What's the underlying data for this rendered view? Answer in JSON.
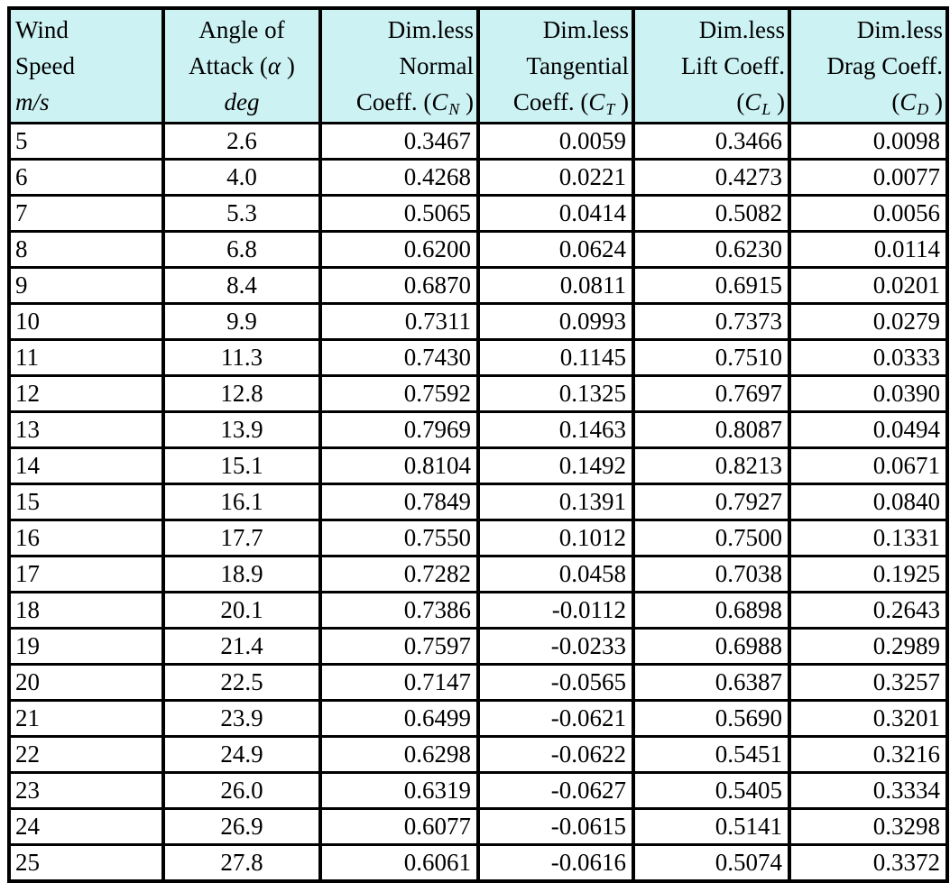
{
  "colors": {
    "header_bg": "#CCF2F4",
    "grid_border": "#000000",
    "text": "#000000",
    "page_bg": "#FFFFFF"
  },
  "table": {
    "header": {
      "c0": {
        "line1": "Wind",
        "line2": "Speed",
        "line3_unit": "m/s"
      },
      "c1": {
        "line1": "Angle of",
        "line2_text": "Attack (",
        "line2_symbol": "α",
        "line2_close": " )",
        "line3_unit": "deg"
      },
      "c2": {
        "line1": "Dim.less",
        "line2": "Normal",
        "line3_text": "Coeff. (",
        "line3_var": "C",
        "line3_sub": "N",
        "line3_close": " )"
      },
      "c3": {
        "line1": "Dim.less",
        "line2": "Tangential",
        "line3_text": "Coeff. (",
        "line3_var": "C",
        "line3_sub": "T",
        "line3_close": " )"
      },
      "c4": {
        "line1": "Dim.less",
        "line2": "Lift Coeff.",
        "line3_text": "(",
        "line3_var": "C",
        "line3_sub": "L",
        "line3_close": " )"
      },
      "c5": {
        "line1": "Dim.less",
        "line2": "Drag Coeff.",
        "line3_text": "(",
        "line3_var": "C",
        "line3_sub": "D",
        "line3_close": " )"
      }
    },
    "column_ids": [
      "wind-speed",
      "angle-of-attack",
      "normal-coeff",
      "tangential-coeff",
      "lift-coeff",
      "drag-coeff"
    ],
    "rows": [
      [
        "5",
        "2.6",
        "0.3467",
        "0.0059",
        "0.3466",
        "0.0098"
      ],
      [
        "6",
        "4.0",
        "0.4268",
        "0.0221",
        "0.4273",
        "0.0077"
      ],
      [
        "7",
        "5.3",
        "0.5065",
        "0.0414",
        "0.5082",
        "0.0056"
      ],
      [
        "8",
        "6.8",
        "0.6200",
        "0.0624",
        "0.6230",
        "0.0114"
      ],
      [
        "9",
        "8.4",
        "0.6870",
        "0.0811",
        "0.6915",
        "0.0201"
      ],
      [
        "10",
        "9.9",
        "0.7311",
        "0.0993",
        "0.7373",
        "0.0279"
      ],
      [
        "11",
        "11.3",
        "0.7430",
        "0.1145",
        "0.7510",
        "0.0333"
      ],
      [
        "12",
        "12.8",
        "0.7592",
        "0.1325",
        "0.7697",
        "0.0390"
      ],
      [
        "13",
        "13.9",
        "0.7969",
        "0.1463",
        "0.8087",
        "0.0494"
      ],
      [
        "14",
        "15.1",
        "0.8104",
        "0.1492",
        "0.8213",
        "0.0671"
      ],
      [
        "15",
        "16.1",
        "0.7849",
        "0.1391",
        "0.7927",
        "0.0840"
      ],
      [
        "16",
        "17.7",
        "0.7550",
        "0.1012",
        "0.7500",
        "0.1331"
      ],
      [
        "17",
        "18.9",
        "0.7282",
        "0.0458",
        "0.7038",
        "0.1925"
      ],
      [
        "18",
        "20.1",
        "0.7386",
        "-0.0112",
        "0.6898",
        "0.2643"
      ],
      [
        "19",
        "21.4",
        "0.7597",
        "-0.0233",
        "0.6988",
        "0.2989"
      ],
      [
        "20",
        "22.5",
        "0.7147",
        "-0.0565",
        "0.6387",
        "0.3257"
      ],
      [
        "21",
        "23.9",
        "0.6499",
        "-0.0621",
        "0.5690",
        "0.3201"
      ],
      [
        "22",
        "24.9",
        "0.6298",
        "-0.0622",
        "0.5451",
        "0.3216"
      ],
      [
        "23",
        "26.0",
        "0.6319",
        "-0.0627",
        "0.5405",
        "0.3334"
      ],
      [
        "24",
        "26.9",
        "0.6077",
        "-0.0615",
        "0.5141",
        "0.3298"
      ],
      [
        "25",
        "27.8",
        "0.6061",
        "-0.0616",
        "0.5074",
        "0.3372"
      ]
    ]
  }
}
